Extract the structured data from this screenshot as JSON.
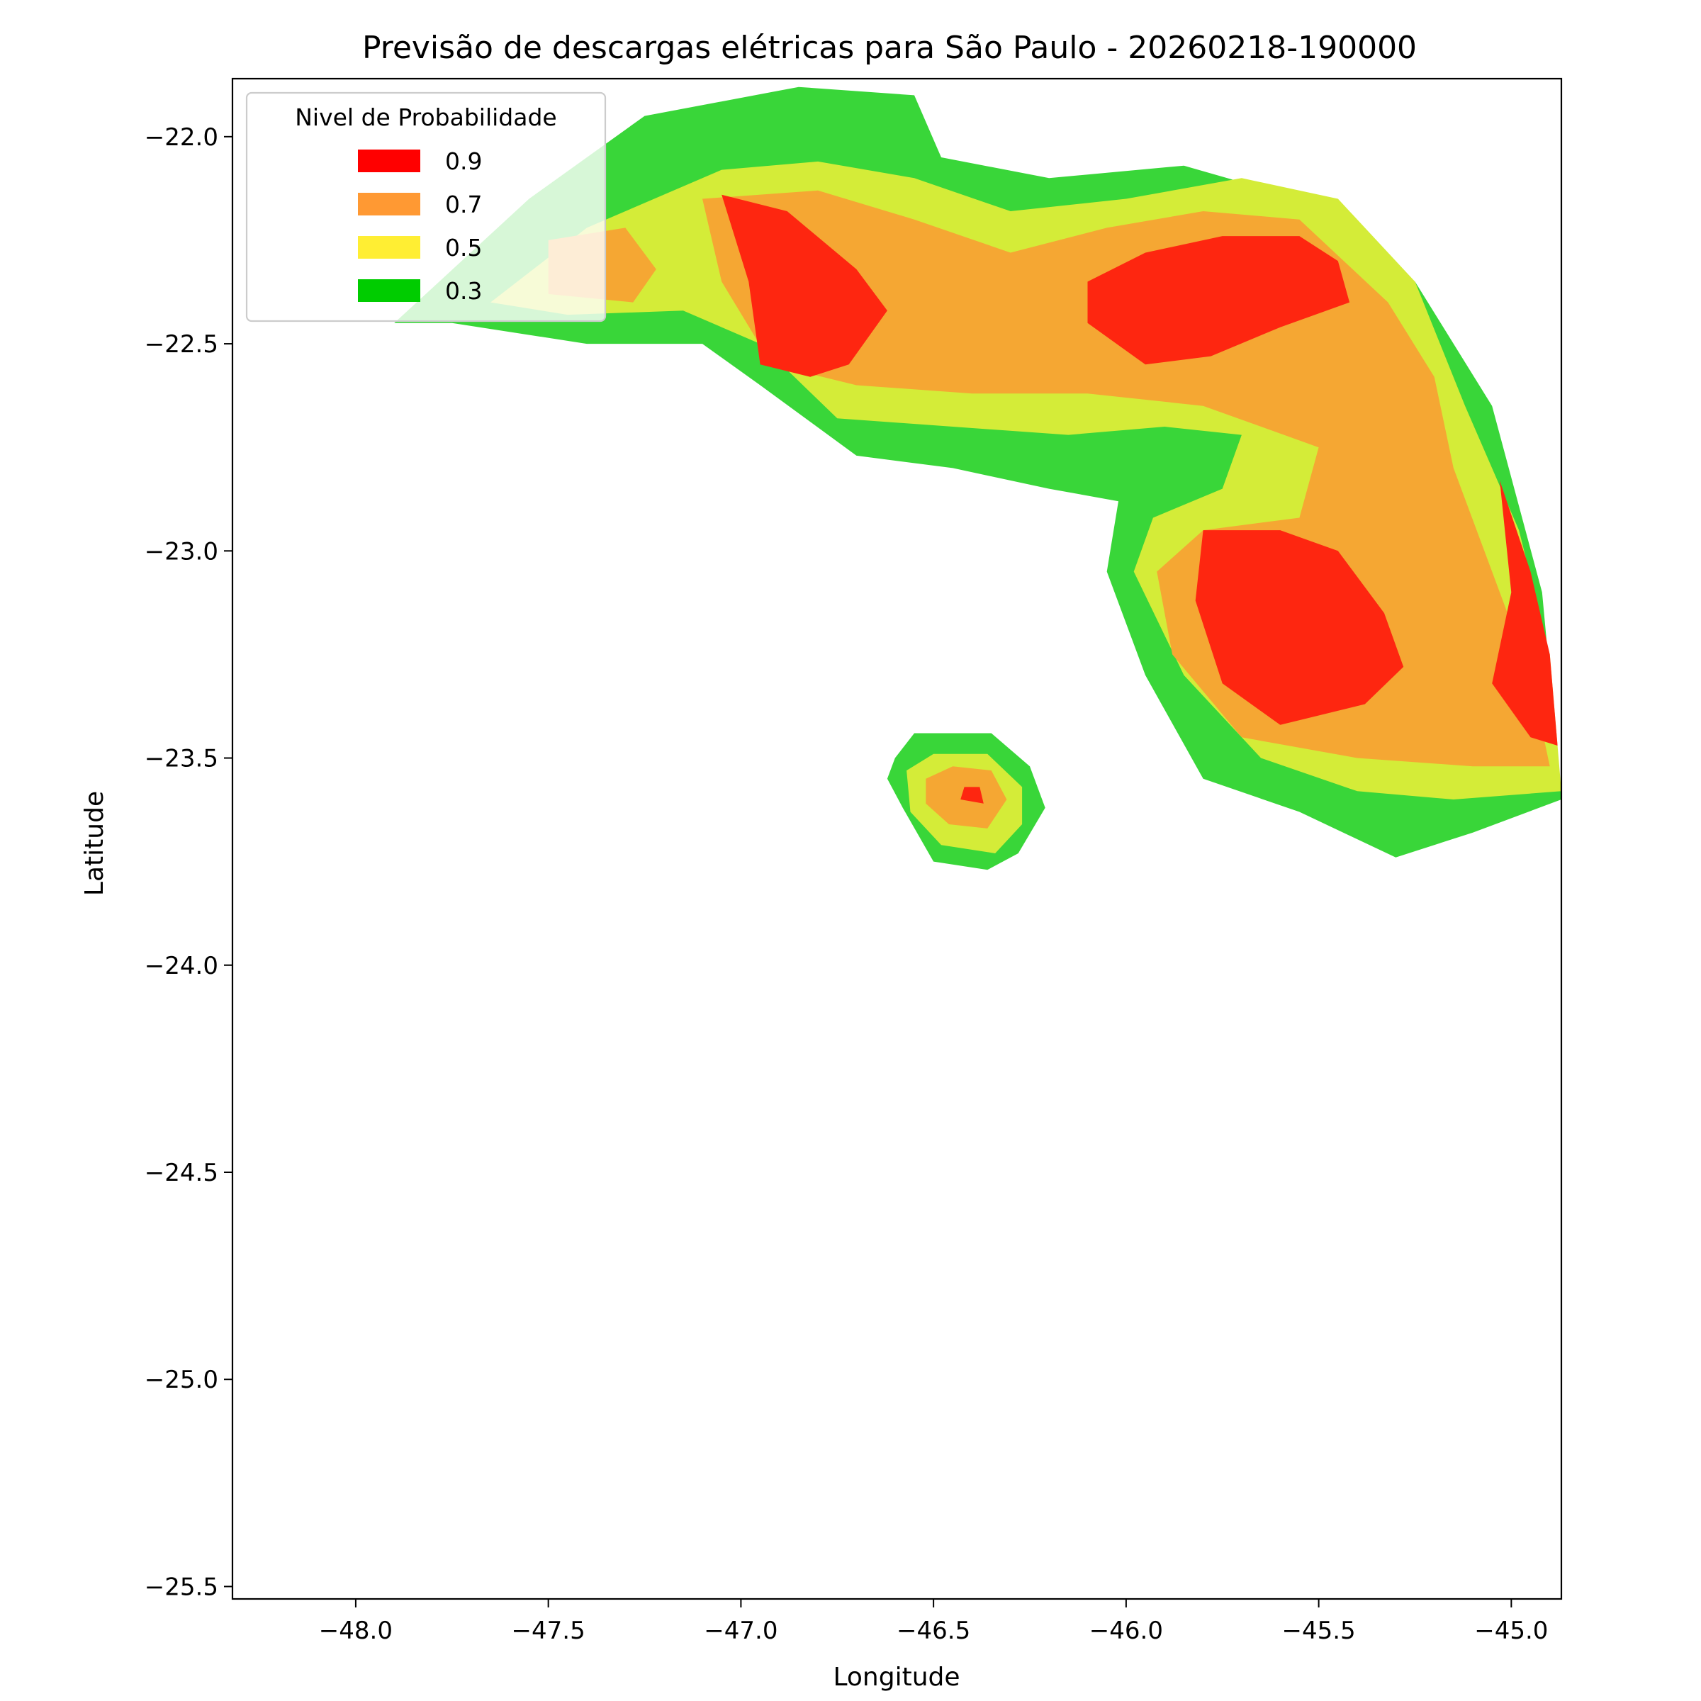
{
  "chart_data": {
    "type": "contour",
    "title": "Previsão de descargas elétricas para São Paulo - 20260218-190000",
    "xlabel": "Longitude",
    "ylabel": "Latitude",
    "xlim": [
      -48.32,
      -44.87
    ],
    "ylim": [
      -25.53,
      -21.86
    ],
    "xticks": [
      -48.0,
      -47.5,
      -47.0,
      -46.5,
      -46.0,
      -45.5,
      -45.0
    ],
    "yticks": [
      -22.0,
      -22.5,
      -23.0,
      -23.5,
      -24.0,
      -24.5,
      -25.0,
      -25.5
    ],
    "xtick_labels": [
      "−48.0",
      "−47.5",
      "−47.0",
      "−46.5",
      "−46.0",
      "−45.5",
      "−45.0"
    ],
    "ytick_labels": [
      "−22.0",
      "−22.5",
      "−23.0",
      "−23.5",
      "−24.0",
      "−24.5",
      "−25.0",
      "−25.5"
    ],
    "grid": false,
    "legend": {
      "title": "Nivel de Probabilidade",
      "placement": "top-left",
      "entries": [
        {
          "label": "0.9",
          "color": "#ff0000"
        },
        {
          "label": "0.7",
          "color": "#ff9933"
        },
        {
          "label": "0.5",
          "color": "#ffee33"
        },
        {
          "label": "0.3",
          "color": "#00cc00"
        }
      ]
    },
    "levels": [
      0.3,
      0.5,
      0.7,
      0.9
    ],
    "fill_colors": {
      "0.3": "#39d639",
      "0.5": "#d4ec38",
      "0.7": "#f5a733",
      "0.9": "#fe2610"
    },
    "regions": [
      {
        "level": 0.3,
        "points": [
          [
            -47.9,
            -22.45
          ],
          [
            -47.55,
            -22.15
          ],
          [
            -47.25,
            -21.95
          ],
          [
            -46.85,
            -21.88
          ],
          [
            -46.55,
            -21.9
          ],
          [
            -46.48,
            -22.05
          ],
          [
            -46.2,
            -22.1
          ],
          [
            -45.85,
            -22.07
          ],
          [
            -45.55,
            -22.15
          ],
          [
            -45.25,
            -22.35
          ],
          [
            -45.05,
            -22.65
          ],
          [
            -44.92,
            -23.1
          ],
          [
            -44.87,
            -23.6
          ],
          [
            -45.1,
            -23.68
          ],
          [
            -45.3,
            -23.74
          ],
          [
            -45.55,
            -23.63
          ],
          [
            -45.8,
            -23.55
          ],
          [
            -45.95,
            -23.3
          ],
          [
            -46.05,
            -23.05
          ],
          [
            -46.02,
            -22.88
          ],
          [
            -46.2,
            -22.85
          ],
          [
            -46.45,
            -22.8
          ],
          [
            -46.7,
            -22.77
          ],
          [
            -46.95,
            -22.6
          ],
          [
            -47.1,
            -22.5
          ],
          [
            -47.4,
            -22.5
          ],
          [
            -47.75,
            -22.45
          ]
        ]
      },
      {
        "level": 0.3,
        "points": [
          [
            -46.6,
            -23.5
          ],
          [
            -46.55,
            -23.44
          ],
          [
            -46.35,
            -23.44
          ],
          [
            -46.25,
            -23.52
          ],
          [
            -46.21,
            -23.62
          ],
          [
            -46.28,
            -23.73
          ],
          [
            -46.36,
            -23.77
          ],
          [
            -46.5,
            -23.75
          ],
          [
            -46.58,
            -23.62
          ],
          [
            -46.62,
            -23.55
          ]
        ]
      },
      {
        "level": 0.5,
        "points": [
          [
            -47.65,
            -22.4
          ],
          [
            -47.4,
            -22.22
          ],
          [
            -47.05,
            -22.08
          ],
          [
            -46.8,
            -22.06
          ],
          [
            -46.55,
            -22.1
          ],
          [
            -46.3,
            -22.18
          ],
          [
            -46.0,
            -22.15
          ],
          [
            -45.7,
            -22.1
          ],
          [
            -45.45,
            -22.15
          ],
          [
            -45.25,
            -22.35
          ],
          [
            -45.12,
            -22.65
          ],
          [
            -44.98,
            -22.95
          ],
          [
            -44.9,
            -23.25
          ],
          [
            -44.87,
            -23.58
          ],
          [
            -45.15,
            -23.6
          ],
          [
            -45.4,
            -23.58
          ],
          [
            -45.65,
            -23.5
          ],
          [
            -45.85,
            -23.3
          ],
          [
            -45.98,
            -23.05
          ],
          [
            -45.93,
            -22.92
          ],
          [
            -45.75,
            -22.85
          ],
          [
            -45.7,
            -22.72
          ],
          [
            -45.9,
            -22.7
          ],
          [
            -46.15,
            -22.72
          ],
          [
            -46.45,
            -22.7
          ],
          [
            -46.75,
            -22.68
          ],
          [
            -46.95,
            -22.5
          ],
          [
            -47.15,
            -22.42
          ],
          [
            -47.45,
            -22.43
          ]
        ]
      },
      {
        "level": 0.5,
        "points": [
          [
            -46.57,
            -23.53
          ],
          [
            -46.5,
            -23.49
          ],
          [
            -46.36,
            -23.49
          ],
          [
            -46.27,
            -23.57
          ],
          [
            -46.27,
            -23.66
          ],
          [
            -46.34,
            -23.73
          ],
          [
            -46.48,
            -23.71
          ],
          [
            -46.56,
            -23.63
          ]
        ]
      },
      {
        "level": 0.7,
        "points": [
          [
            -47.1,
            -22.15
          ],
          [
            -46.8,
            -22.13
          ],
          [
            -46.55,
            -22.2
          ],
          [
            -46.3,
            -22.28
          ],
          [
            -46.05,
            -22.22
          ],
          [
            -45.8,
            -22.18
          ],
          [
            -45.55,
            -22.2
          ],
          [
            -45.32,
            -22.4
          ],
          [
            -45.2,
            -22.58
          ],
          [
            -45.15,
            -22.8
          ],
          [
            -45.05,
            -23.05
          ],
          [
            -44.95,
            -23.3
          ],
          [
            -44.9,
            -23.52
          ],
          [
            -45.1,
            -23.52
          ],
          [
            -45.4,
            -23.5
          ],
          [
            -45.7,
            -23.45
          ],
          [
            -45.88,
            -23.25
          ],
          [
            -45.92,
            -23.05
          ],
          [
            -45.8,
            -22.95
          ],
          [
            -45.55,
            -22.92
          ],
          [
            -45.5,
            -22.75
          ],
          [
            -45.8,
            -22.65
          ],
          [
            -46.1,
            -22.62
          ],
          [
            -46.4,
            -22.62
          ],
          [
            -46.7,
            -22.6
          ],
          [
            -46.92,
            -22.55
          ],
          [
            -47.05,
            -22.35
          ]
        ]
      },
      {
        "level": 0.7,
        "points": [
          [
            -46.52,
            -23.55
          ],
          [
            -46.45,
            -23.52
          ],
          [
            -46.35,
            -23.53
          ],
          [
            -46.31,
            -23.6
          ],
          [
            -46.36,
            -23.67
          ],
          [
            -46.46,
            -23.66
          ],
          [
            -46.52,
            -23.61
          ]
        ]
      },
      {
        "level": 0.7,
        "points": [
          [
            -47.5,
            -22.25
          ],
          [
            -47.3,
            -22.22
          ],
          [
            -47.22,
            -22.32
          ],
          [
            -47.28,
            -22.4
          ],
          [
            -47.5,
            -22.38
          ]
        ]
      },
      {
        "level": 0.9,
        "points": [
          [
            -47.05,
            -22.14
          ],
          [
            -46.88,
            -22.18
          ],
          [
            -46.7,
            -22.32
          ],
          [
            -46.62,
            -22.42
          ],
          [
            -46.72,
            -22.55
          ],
          [
            -46.82,
            -22.58
          ],
          [
            -46.95,
            -22.55
          ],
          [
            -46.98,
            -22.35
          ]
        ]
      },
      {
        "level": 0.9,
        "points": [
          [
            -46.1,
            -22.35
          ],
          [
            -45.95,
            -22.28
          ],
          [
            -45.75,
            -22.24
          ],
          [
            -45.55,
            -22.24
          ],
          [
            -45.45,
            -22.3
          ],
          [
            -45.42,
            -22.4
          ],
          [
            -45.6,
            -22.46
          ],
          [
            -45.78,
            -22.53
          ],
          [
            -45.95,
            -22.55
          ],
          [
            -46.1,
            -22.45
          ]
        ]
      },
      {
        "level": 0.9,
        "points": [
          [
            -45.8,
            -22.95
          ],
          [
            -45.6,
            -22.95
          ],
          [
            -45.45,
            -23.0
          ],
          [
            -45.33,
            -23.15
          ],
          [
            -45.28,
            -23.28
          ],
          [
            -45.38,
            -23.37
          ],
          [
            -45.6,
            -23.42
          ],
          [
            -45.75,
            -23.32
          ],
          [
            -45.82,
            -23.12
          ]
        ]
      },
      {
        "level": 0.9,
        "points": [
          [
            -45.03,
            -22.83
          ],
          [
            -44.95,
            -23.05
          ],
          [
            -44.9,
            -23.25
          ],
          [
            -44.88,
            -23.47
          ],
          [
            -44.95,
            -23.45
          ],
          [
            -45.05,
            -23.32
          ],
          [
            -45.0,
            -23.1
          ]
        ]
      },
      {
        "level": 0.9,
        "points": [
          [
            -46.42,
            -23.57
          ],
          [
            -46.38,
            -23.57
          ],
          [
            -46.37,
            -23.61
          ],
          [
            -46.43,
            -23.6
          ]
        ]
      }
    ]
  }
}
